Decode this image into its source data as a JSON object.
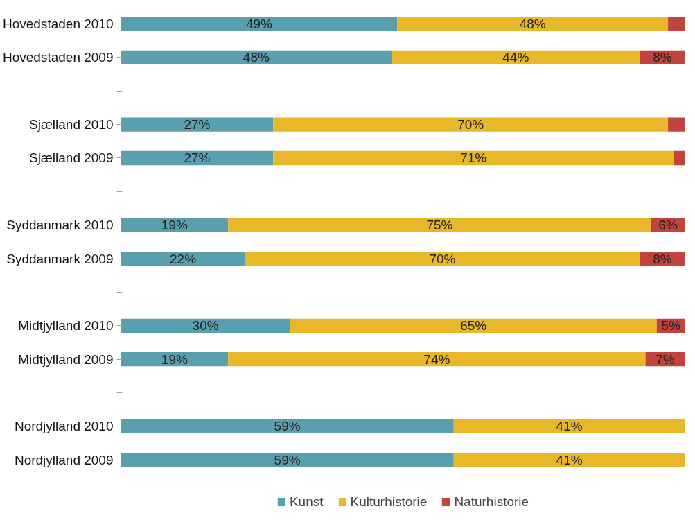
{
  "chart_data": {
    "type": "bar",
    "orientation": "horizontal",
    "stacked": true,
    "categories": [
      "Hovedstaden 2010",
      "Hovedstaden 2009",
      null,
      "Sjælland 2010",
      "Sjælland 2009",
      null,
      "Syddanmark 2010",
      "Syddanmark 2009",
      null,
      "Midtjylland 2010",
      "Midtjylland 2009",
      null,
      "Nordjylland 2010",
      "Nordjylland 2009"
    ],
    "series": [
      {
        "name": "Kunst",
        "color": "#5a9fae",
        "values": [
          49,
          48,
          null,
          27,
          27,
          null,
          19,
          22,
          null,
          30,
          19,
          null,
          59,
          59
        ],
        "value_labels": [
          "49%",
          "48%",
          null,
          "27%",
          "27%",
          null,
          "19%",
          "22%",
          null,
          "30%",
          "19%",
          null,
          "59%",
          "59%"
        ]
      },
      {
        "name": "Kulturhistorie",
        "color": "#e8b82a",
        "values": [
          48,
          44,
          null,
          70,
          71,
          null,
          75,
          70,
          null,
          65,
          74,
          null,
          41,
          41
        ],
        "value_labels": [
          "48%",
          "44%",
          null,
          "70%",
          "71%",
          null,
          "75%",
          "70%",
          null,
          "65%",
          "74%",
          null,
          "41%",
          "41%"
        ]
      },
      {
        "name": "Naturhistorie",
        "color": "#c0433c",
        "values": [
          3,
          8,
          null,
          3,
          2,
          null,
          6,
          8,
          null,
          5,
          7,
          null,
          0,
          0
        ],
        "value_labels": [
          null,
          "8%",
          null,
          null,
          null,
          null,
          "6%",
          "8%",
          null,
          "5%",
          "7%",
          null,
          null,
          null
        ]
      }
    ],
    "xlim": [
      0,
      100
    ],
    "tick_labels": "y",
    "grid": false,
    "legend": "bottom"
  }
}
